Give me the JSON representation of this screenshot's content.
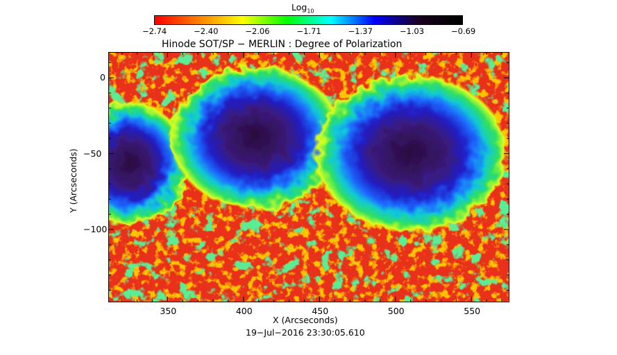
{
  "colorbar": {
    "title": "Log",
    "title_sub": "10",
    "ticks": [
      "−2.74",
      "−2.40",
      "−2.06",
      "−1.71",
      "−1.37",
      "−1.03",
      "−0.69"
    ],
    "colors": [
      "#ff0000",
      "#ff7f00",
      "#ffff00",
      "#00ff00",
      "#00ffff",
      "#0000ff",
      "#1a0020",
      "#000000"
    ]
  },
  "plot": {
    "title": "Hinode SOT/SP − MERLIN : Degree of Polarization",
    "xlabel": "X (Arcseconds)",
    "ylabel": "Y (Arcseconds)",
    "xticks": [
      "350",
      "400",
      "450",
      "500",
      "550"
    ],
    "yticks": [
      "0",
      "−50",
      "−100"
    ],
    "date": "19−Jul−2016 23:30:05.610",
    "xrange": [
      311,
      575
    ],
    "yrange": [
      -148,
      17
    ]
  },
  "chart_data": {
    "type": "heatmap",
    "title": "Hinode SOT/SP − MERLIN : Degree of Polarization",
    "xlabel": "X (Arcseconds)",
    "ylabel": "Y (Arcseconds)",
    "xlim": [
      311,
      575
    ],
    "ylim": [
      -148,
      17
    ],
    "xticks": [
      350,
      400,
      450,
      500,
      550
    ],
    "yticks": [
      0,
      -50,
      -100
    ],
    "colorbar_range": [
      -2.74,
      -0.69
    ],
    "colorbar_ticks": [
      -2.74,
      -2.4,
      -2.06,
      -1.71,
      -1.37,
      -1.03,
      -0.69
    ],
    "colorbar_label": "Log10",
    "date": "19−Jul−2016 23:30:05.610"
  }
}
